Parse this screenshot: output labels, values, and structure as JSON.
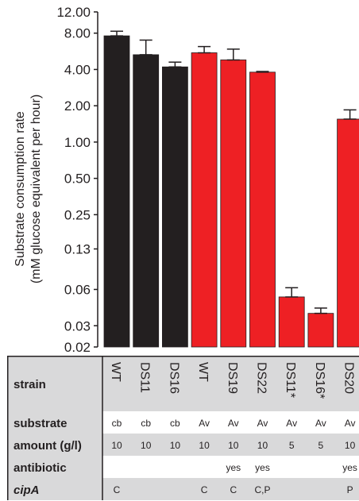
{
  "chart_data": {
    "type": "bar",
    "ylabel_line1": "Substrate consumption rate",
    "ylabel_line2": "(mM glucose equivalent per hour)",
    "yscale": "log2",
    "ylim": [
      0.02,
      12.0
    ],
    "yticks": [
      "0.02",
      "0.03",
      "0.06",
      "0.13",
      "0.25",
      "0.50",
      "1.00",
      "2.00",
      "4.00",
      "8.00",
      "12.00"
    ],
    "ytick_values": [
      0.02,
      0.03,
      0.06,
      0.13,
      0.25,
      0.5,
      1.0,
      2.0,
      4.0,
      8.0,
      12.0
    ],
    "categories": [
      "WT",
      "DS11",
      "DS16",
      "WT",
      "DS19",
      "DS22",
      "DS11*",
      "DS16*",
      "DS20"
    ],
    "values": [
      7.6,
      5.3,
      4.2,
      5.5,
      4.8,
      3.8,
      0.052,
      0.038,
      1.55
    ],
    "err_high": [
      8.3,
      7.0,
      4.6,
      6.2,
      5.9,
      3.85,
      0.062,
      0.042,
      1.85
    ],
    "err_low": [
      7.6,
      5.3,
      4.2,
      5.5,
      4.8,
      3.8,
      0.052,
      0.038,
      1.55
    ],
    "bar_colors": [
      "#231f20",
      "#231f20",
      "#231f20",
      "#ee2024",
      "#ee2024",
      "#ee2024",
      "#ee2024",
      "#ee2024",
      "#ee2024"
    ]
  },
  "table": {
    "rows": [
      {
        "label": "strain",
        "italic": false,
        "values": [
          "WT",
          "DS11",
          "DS16",
          "WT",
          "DS19",
          "DS22",
          "DS11*",
          "DS16*",
          "DS20"
        ]
      },
      {
        "label": "substrate",
        "italic": false,
        "values": [
          "cb",
          "cb",
          "cb",
          "Av",
          "Av",
          "Av",
          "Av",
          "Av",
          "Av"
        ]
      },
      {
        "label": "amount (g/l)",
        "italic": false,
        "values": [
          "10",
          "10",
          "10",
          "10",
          "10",
          "10",
          "5",
          "5",
          "10"
        ]
      },
      {
        "label": "antibiotic",
        "italic": false,
        "values": [
          "",
          "",
          "",
          "",
          "yes",
          "yes",
          "",
          "",
          "yes"
        ]
      },
      {
        "label": "cipA",
        "italic": true,
        "values": [
          "C",
          "",
          "",
          "C",
          "C",
          "C,P",
          "",
          "",
          "P"
        ]
      }
    ]
  },
  "colors": {
    "black_bar": "#231f20",
    "red_bar": "#ee2024",
    "row_shade": "#d9d9da"
  }
}
